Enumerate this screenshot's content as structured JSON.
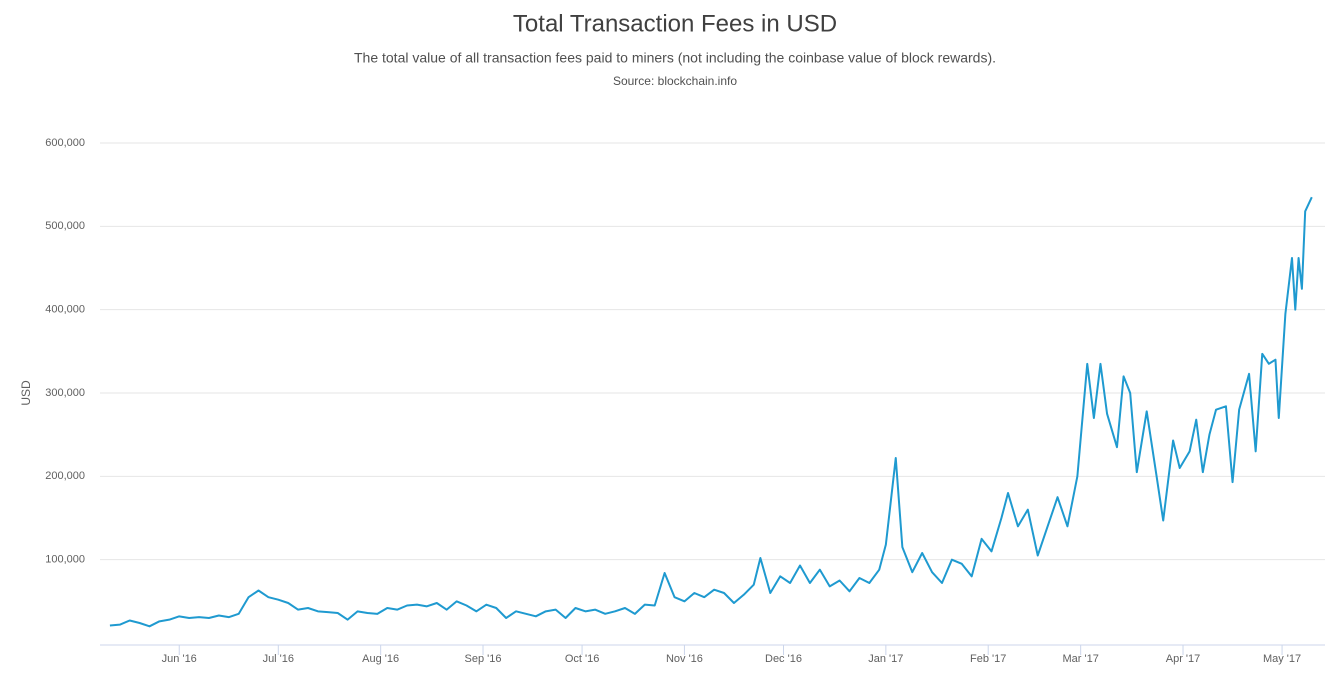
{
  "chart_data": {
    "type": "line",
    "title": "Total Transaction Fees in USD",
    "subtitle": "The total value of all transaction fees paid to miners (not including the coinbase value of block rewards).",
    "source": "Source: blockchain.info",
    "y_label": "USD",
    "x": [
      -21,
      -18,
      -15,
      -12,
      -9,
      -6,
      -3,
      0,
      3,
      6,
      9,
      12,
      15,
      18,
      21,
      24,
      27,
      30,
      33,
      36,
      39,
      42,
      45,
      48,
      51,
      54,
      57,
      60,
      63,
      66,
      69,
      72,
      75,
      78,
      81,
      84,
      87,
      90,
      93,
      96,
      99,
      102,
      105,
      108,
      111,
      114,
      117,
      120,
      123,
      126,
      129,
      132,
      135,
      138,
      141,
      144,
      147,
      150,
      153,
      156,
      159,
      162,
      165,
      168,
      171,
      174,
      176,
      179,
      182,
      185,
      188,
      191,
      194,
      197,
      200,
      203,
      206,
      209,
      212,
      214,
      217,
      219,
      222,
      225,
      228,
      231,
      234,
      237,
      240,
      243,
      246,
      249,
      251,
      254,
      257,
      260,
      263,
      266,
      269,
      272,
      275,
      277,
      279,
      281,
      284,
      286,
      288,
      290,
      293,
      296,
      298,
      301,
      303,
      306,
      308,
      310,
      312,
      314,
      317,
      319,
      321,
      324,
      326,
      328,
      330,
      332,
      333,
      335,
      337,
      338,
      339,
      340,
      341,
      343
    ],
    "series": [
      {
        "name": "USD",
        "color": "#1f9ad0",
        "values": [
          21000,
          22000,
          27000,
          24000,
          20000,
          26000,
          28000,
          32000,
          30000,
          31000,
          30000,
          33000,
          31000,
          35000,
          55000,
          63000,
          55000,
          52000,
          48000,
          40000,
          42000,
          38000,
          37000,
          36000,
          28000,
          38000,
          36000,
          35000,
          42000,
          40000,
          45000,
          46000,
          44000,
          48000,
          40000,
          50000,
          45000,
          38000,
          46000,
          42000,
          30000,
          38000,
          35000,
          32000,
          38000,
          40000,
          30000,
          42000,
          38000,
          40000,
          35000,
          38000,
          42000,
          35000,
          46000,
          45000,
          84000,
          55000,
          50000,
          60000,
          55000,
          64000,
          60000,
          48000,
          58000,
          70000,
          102000,
          60000,
          80000,
          72000,
          93000,
          72000,
          88000,
          68000,
          75000,
          62000,
          78000,
          72000,
          88000,
          118000,
          222000,
          115000,
          85000,
          108000,
          85000,
          72000,
          100000,
          95000,
          80000,
          125000,
          110000,
          150000,
          180000,
          140000,
          160000,
          105000,
          140000,
          175000,
          140000,
          200000,
          335000,
          270000,
          335000,
          275000,
          235000,
          320000,
          300000,
          205000,
          278000,
          200000,
          147000,
          243000,
          210000,
          230000,
          268000,
          205000,
          250000,
          280000,
          284000,
          193000,
          280000,
          323000,
          230000,
          347000,
          335000,
          340000,
          270000,
          395000,
          462000,
          400000,
          462000,
          425000,
          518000,
          535000
        ]
      }
    ],
    "xlim": [
      -24,
      347
    ],
    "xticks": [
      {
        "value": 0,
        "label": "Jun '16"
      },
      {
        "value": 30,
        "label": "Jul '16"
      },
      {
        "value": 61,
        "label": "Aug '16"
      },
      {
        "value": 92,
        "label": "Sep '16"
      },
      {
        "value": 122,
        "label": "Oct '16"
      },
      {
        "value": 153,
        "label": "Nov '16"
      },
      {
        "value": 183,
        "label": "Dec '16"
      },
      {
        "value": 214,
        "label": "Jan '17"
      },
      {
        "value": 245,
        "label": "Feb '17"
      },
      {
        "value": 273,
        "label": "Mar '17"
      },
      {
        "value": 304,
        "label": "Apr '17"
      },
      {
        "value": 334,
        "label": "May '17"
      }
    ],
    "ylim": [
      0,
      600000
    ],
    "yticks": [
      {
        "value": 100000,
        "label": "100,000"
      },
      {
        "value": 200000,
        "label": "200,000"
      },
      {
        "value": 300000,
        "label": "300,000"
      },
      {
        "value": 400000,
        "label": "400,000"
      },
      {
        "value": 500000,
        "label": "500,000"
      },
      {
        "value": 600000,
        "label": "600,000"
      }
    ],
    "grid": true
  }
}
